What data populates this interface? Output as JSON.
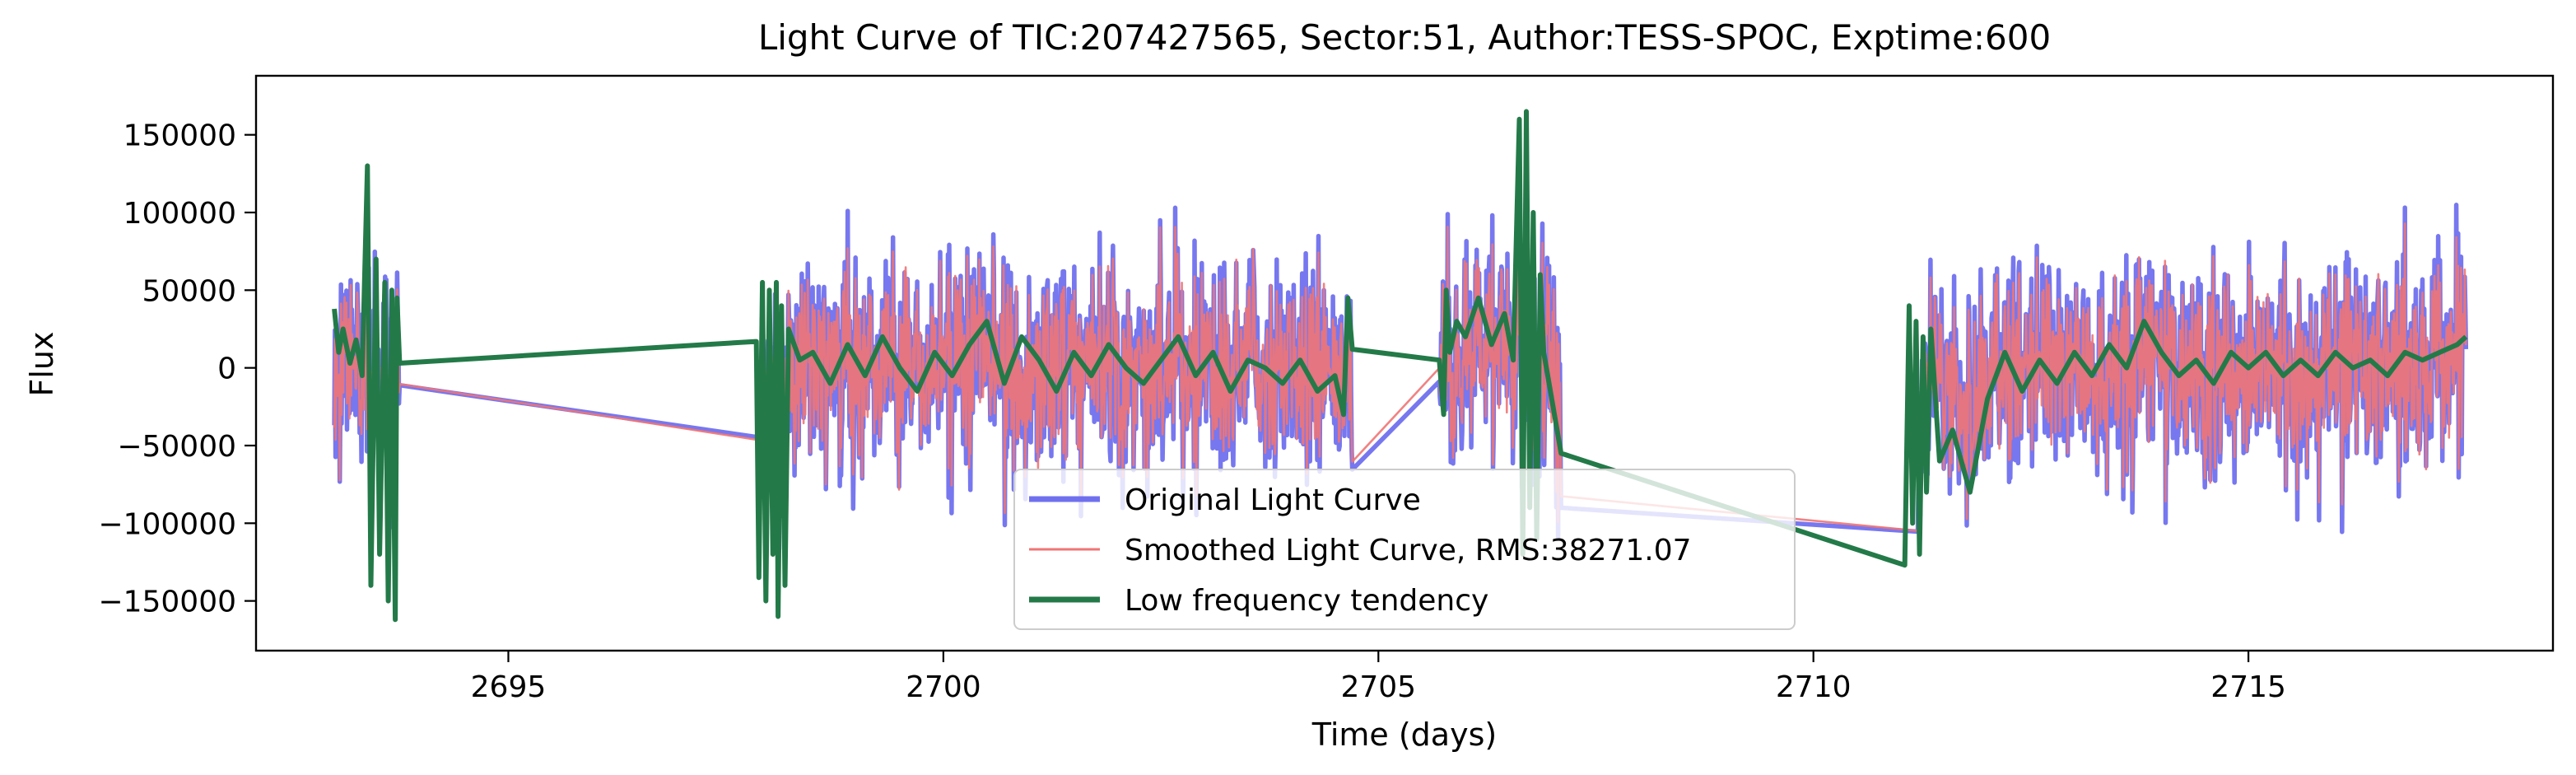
{
  "chart_data": {
    "type": "line",
    "title": "Light Curve of TIC:207427565, Sector:51, Author:TESS-SPOC, Exptime:600",
    "xlabel": "Time (days)",
    "ylabel": "Flux",
    "xlim": [
      2692.1,
      2718.5
    ],
    "ylim": [
      -182000,
      188000
    ],
    "x_ticks": [
      2695,
      2700,
      2705,
      2710,
      2715
    ],
    "y_ticks": [
      -150000,
      -100000,
      -50000,
      0,
      50000,
      100000,
      150000
    ],
    "x_tick_labels": [
      "2695",
      "2700",
      "2705",
      "2710",
      "2715"
    ],
    "y_tick_labels": [
      "−150000",
      "−100000",
      "−50000",
      "0",
      "50000",
      "100000",
      "150000"
    ],
    "grid": false,
    "legend_position": "bottom-center",
    "segments": [
      {
        "x_start": 2693.0,
        "x_end": 2693.75
      },
      {
        "x_start": 2697.9,
        "x_end": 2704.7
      },
      {
        "x_start": 2705.7,
        "x_end": 2707.1
      },
      {
        "x_start": 2711.2,
        "x_end": 2717.5
      }
    ],
    "series": [
      {
        "name": "Original Light Curve",
        "color": "#7070ee",
        "approx_amplitude": 65000,
        "approx_extremes": {
          "min": -162000,
          "max": 145000
        }
      },
      {
        "name": "Smoothed Light Curve, RMS:38271.07",
        "color": "#f07474",
        "rms": 38271.07,
        "approx_amplitude": 55000
      },
      {
        "name": "Low frequency tendency",
        "color": "#237a48",
        "points": [
          [
            2693.0,
            38000
          ],
          [
            2693.05,
            10000
          ],
          [
            2693.1,
            25000
          ],
          [
            2693.18,
            3000
          ],
          [
            2693.25,
            18000
          ],
          [
            2693.32,
            -5000
          ],
          [
            2693.38,
            130000
          ],
          [
            2693.42,
            -140000
          ],
          [
            2693.48,
            70000
          ],
          [
            2693.52,
            -120000
          ],
          [
            2693.58,
            55000
          ],
          [
            2693.62,
            -150000
          ],
          [
            2693.66,
            50000
          ],
          [
            2693.7,
            -162000
          ],
          [
            2693.72,
            45000
          ],
          [
            2693.75,
            3000
          ],
          [
            2697.85,
            17000
          ],
          [
            2697.88,
            -135000
          ],
          [
            2697.92,
            55000
          ],
          [
            2697.96,
            -150000
          ],
          [
            2698.0,
            50000
          ],
          [
            2698.04,
            -120000
          ],
          [
            2698.08,
            55000
          ],
          [
            2698.1,
            -160000
          ],
          [
            2698.14,
            40000
          ],
          [
            2698.18,
            -140000
          ],
          [
            2698.22,
            25000
          ],
          [
            2698.35,
            5000
          ],
          [
            2698.5,
            10000
          ],
          [
            2698.7,
            -10000
          ],
          [
            2698.9,
            15000
          ],
          [
            2699.1,
            -5000
          ],
          [
            2699.3,
            20000
          ],
          [
            2699.5,
            0
          ],
          [
            2699.7,
            -15000
          ],
          [
            2699.9,
            10000
          ],
          [
            2700.1,
            -5000
          ],
          [
            2700.3,
            15000
          ],
          [
            2700.5,
            30000
          ],
          [
            2700.7,
            -10000
          ],
          [
            2700.9,
            20000
          ],
          [
            2701.1,
            5000
          ],
          [
            2701.3,
            -15000
          ],
          [
            2701.5,
            10000
          ],
          [
            2701.7,
            -5000
          ],
          [
            2701.9,
            15000
          ],
          [
            2702.1,
            0
          ],
          [
            2702.3,
            -10000
          ],
          [
            2702.5,
            5000
          ],
          [
            2702.7,
            20000
          ],
          [
            2702.9,
            -5000
          ],
          [
            2703.1,
            10000
          ],
          [
            2703.3,
            -15000
          ],
          [
            2703.5,
            5000
          ],
          [
            2703.7,
            0
          ],
          [
            2703.9,
            -10000
          ],
          [
            2704.1,
            5000
          ],
          [
            2704.3,
            -15000
          ],
          [
            2704.5,
            -5000
          ],
          [
            2704.6,
            -30000
          ],
          [
            2704.65,
            45000
          ],
          [
            2704.7,
            12000
          ],
          [
            2705.7,
            5000
          ],
          [
            2705.75,
            -30000
          ],
          [
            2705.78,
            50000
          ],
          [
            2705.82,
            10000
          ],
          [
            2705.9,
            30000
          ],
          [
            2706.0,
            20000
          ],
          [
            2706.15,
            45000
          ],
          [
            2706.3,
            15000
          ],
          [
            2706.45,
            35000
          ],
          [
            2706.55,
            5000
          ],
          [
            2706.62,
            160000
          ],
          [
            2706.66,
            -120000
          ],
          [
            2706.7,
            165000
          ],
          [
            2706.74,
            -90000
          ],
          [
            2706.78,
            100000
          ],
          [
            2706.82,
            -110000
          ],
          [
            2706.86,
            60000
          ],
          [
            2706.9,
            10000
          ],
          [
            2707.1,
            -55000
          ],
          [
            2711.05,
            -127000
          ],
          [
            2711.1,
            40000
          ],
          [
            2711.14,
            -100000
          ],
          [
            2711.18,
            30000
          ],
          [
            2711.22,
            -120000
          ],
          [
            2711.26,
            20000
          ],
          [
            2711.3,
            -80000
          ],
          [
            2711.35,
            25000
          ],
          [
            2711.45,
            -60000
          ],
          [
            2711.6,
            -40000
          ],
          [
            2711.8,
            -80000
          ],
          [
            2712.0,
            -20000
          ],
          [
            2712.2,
            10000
          ],
          [
            2712.4,
            -15000
          ],
          [
            2712.6,
            5000
          ],
          [
            2712.8,
            -10000
          ],
          [
            2713.0,
            10000
          ],
          [
            2713.2,
            -5000
          ],
          [
            2713.4,
            15000
          ],
          [
            2713.6,
            0
          ],
          [
            2713.8,
            30000
          ],
          [
            2714.0,
            10000
          ],
          [
            2714.2,
            -5000
          ],
          [
            2714.4,
            5000
          ],
          [
            2714.6,
            -10000
          ],
          [
            2714.8,
            10000
          ],
          [
            2715.0,
            0
          ],
          [
            2715.2,
            10000
          ],
          [
            2715.4,
            -5000
          ],
          [
            2715.6,
            5000
          ],
          [
            2715.8,
            -5000
          ],
          [
            2716.0,
            10000
          ],
          [
            2716.2,
            0
          ],
          [
            2716.4,
            5000
          ],
          [
            2716.6,
            -5000
          ],
          [
            2716.8,
            10000
          ],
          [
            2717.0,
            5000
          ],
          [
            2717.2,
            10000
          ],
          [
            2717.4,
            15000
          ],
          [
            2717.5,
            20000
          ]
        ]
      }
    ]
  }
}
